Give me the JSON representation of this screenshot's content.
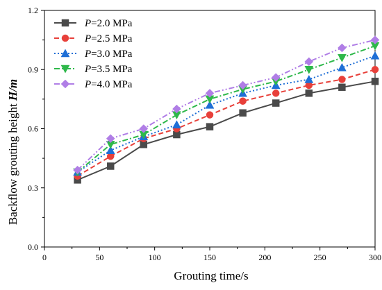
{
  "chart_data": {
    "type": "line",
    "title": "",
    "xlabel": "Grouting time/s",
    "ylabel": {
      "prefix": "Backflow grouting height ",
      "var": "H/m"
    },
    "xlim": [
      0,
      300
    ],
    "ylim": [
      0.0,
      1.2
    ],
    "x_ticks": [
      "0",
      "50",
      "100",
      "150",
      "200",
      "250",
      "300"
    ],
    "y_ticks": [
      "0.0",
      "0.3",
      "0.6",
      "0.9",
      "1.2"
    ],
    "x_tick_values": [
      0,
      50,
      100,
      150,
      200,
      250,
      300
    ],
    "y_tick_values": [
      0.0,
      0.3,
      0.6,
      0.9,
      1.2
    ],
    "grid": false,
    "legend_position": "top-left",
    "x": [
      30,
      60,
      90,
      120,
      150,
      180,
      210,
      240,
      270,
      300
    ],
    "series": [
      {
        "name": "P=2.0 MPa",
        "name_var": "P",
        "name_rest": "=2.0 MPa",
        "color": "#4a4a4a",
        "marker": "square",
        "dash": "solid",
        "values": [
          0.34,
          0.41,
          0.52,
          0.57,
          0.61,
          0.68,
          0.73,
          0.78,
          0.81,
          0.84
        ]
      },
      {
        "name": "P=2.5 MPa",
        "name_var": "P",
        "name_rest": "=2.5 MPa",
        "color": "#e8403a",
        "marker": "circle",
        "dash": "dash",
        "values": [
          0.36,
          0.46,
          0.55,
          0.6,
          0.67,
          0.74,
          0.78,
          0.82,
          0.85,
          0.9
        ]
      },
      {
        "name": "P=3.0 MPa",
        "name_var": "P",
        "name_rest": "=3.0 MPa",
        "color": "#1f6fd6",
        "marker": "triangle-up",
        "dash": "dot",
        "values": [
          0.38,
          0.49,
          0.56,
          0.62,
          0.72,
          0.78,
          0.82,
          0.85,
          0.91,
          0.97
        ]
      },
      {
        "name": "P=3.5 MPa",
        "name_var": "P",
        "name_rest": "=3.5 MPa",
        "color": "#2eb84a",
        "marker": "triangle-down",
        "dash": "dashdot",
        "values": [
          0.38,
          0.52,
          0.57,
          0.67,
          0.75,
          0.8,
          0.84,
          0.9,
          0.96,
          1.02
        ]
      },
      {
        "name": "P=4.0 MPa",
        "name_var": "P",
        "name_rest": "=4.0 MPa",
        "color": "#b07ee6",
        "marker": "diamond",
        "dash": "dashdotdot",
        "values": [
          0.39,
          0.55,
          0.6,
          0.7,
          0.78,
          0.82,
          0.86,
          0.94,
          1.01,
          1.05
        ]
      }
    ]
  }
}
